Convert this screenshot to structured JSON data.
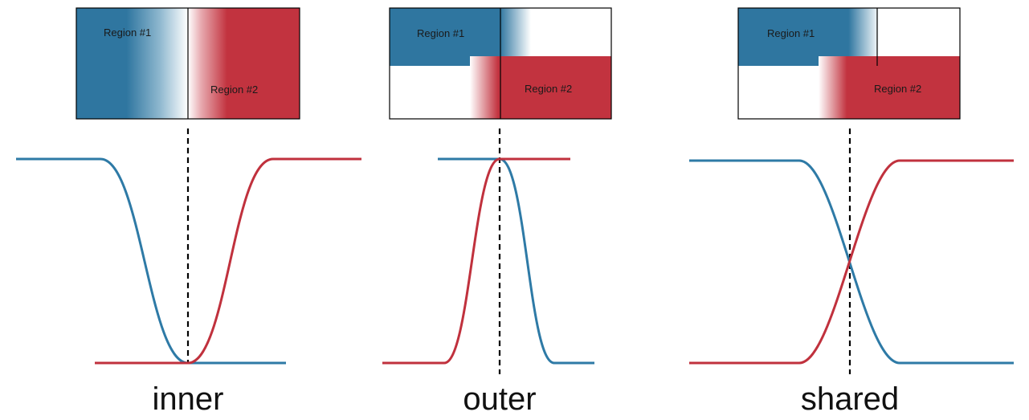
{
  "colors": {
    "region1": "#2f76a0",
    "region2": "#c2333f",
    "divider": "#000000"
  },
  "panels": [
    {
      "caption": "inner",
      "region1_label": "Region #1",
      "region2_label": "Region #2"
    },
    {
      "caption": "outer",
      "region1_label": "Region #1",
      "region2_label": "Region #2"
    },
    {
      "caption": "shared",
      "region1_label": "Region #1",
      "region2_label": "Region #2"
    }
  ]
}
